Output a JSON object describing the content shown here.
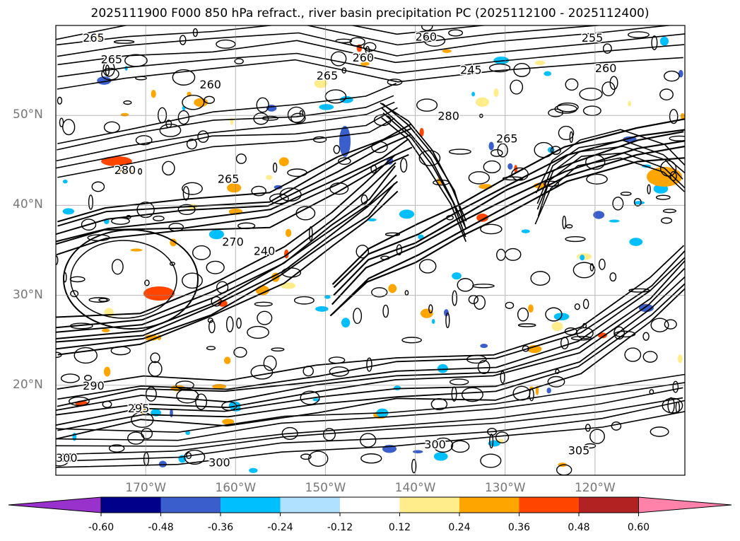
{
  "title": "2025111900 F000 850 hPa refract., river basin precipitation PC (2025112100 - 2025112400)",
  "map": {
    "extent": {
      "lon_min": -180,
      "lon_max": -110,
      "lat_min": 10,
      "lat_max": 60
    },
    "lat_labels": [
      {
        "lat": 50,
        "label": "50°N"
      },
      {
        "lat": 40,
        "label": "40°N"
      },
      {
        "lat": 30,
        "label": "30°N"
      },
      {
        "lat": 20,
        "label": "20°N"
      }
    ],
    "lon_labels": [
      {
        "lon": -170,
        "label": "170°W"
      },
      {
        "lon": -160,
        "label": "160°W"
      },
      {
        "lon": -150,
        "label": "150°W"
      },
      {
        "lon": -140,
        "label": "140°W"
      },
      {
        "lon": -130,
        "label": "130°W"
      },
      {
        "lon": -120,
        "label": "120°W"
      }
    ],
    "contour_labels": [
      {
        "text": "265",
        "lon": -177,
        "lat": 58.2
      },
      {
        "text": "265",
        "lon": -175,
        "lat": 55.8
      },
      {
        "text": "260",
        "lon": -147,
        "lat": 56
      },
      {
        "text": "265",
        "lon": -151,
        "lat": 54
      },
      {
        "text": "260",
        "lon": -164,
        "lat": 53
      },
      {
        "text": "260",
        "lon": -140,
        "lat": 58.3
      },
      {
        "text": "245",
        "lon": -135,
        "lat": 54.6
      },
      {
        "text": "255",
        "lon": -121.5,
        "lat": 58.2
      },
      {
        "text": "260",
        "lon": -120,
        "lat": 54.8
      },
      {
        "text": "280",
        "lon": -137.5,
        "lat": 49.5
      },
      {
        "text": "265",
        "lon": -131,
        "lat": 47
      },
      {
        "text": "265",
        "lon": -162,
        "lat": 42.5
      },
      {
        "text": "280",
        "lon": -173.5,
        "lat": 43.5
      },
      {
        "text": "270",
        "lon": -161.5,
        "lat": 35.5
      },
      {
        "text": "240",
        "lon": -158,
        "lat": 34.5
      },
      {
        "text": "290",
        "lon": -177,
        "lat": 19.5
      },
      {
        "text": "295",
        "lon": -172,
        "lat": 17
      },
      {
        "text": "300",
        "lon": -163,
        "lat": 11
      },
      {
        "text": "300",
        "lon": -139,
        "lat": 13
      },
      {
        "text": "305",
        "lon": -123,
        "lat": 12.3
      },
      {
        "text": "300",
        "lon": -180,
        "lat": 11.5
      }
    ]
  },
  "colorbar": {
    "colors": [
      "#9932cc",
      "#00008b",
      "#3a5fcd",
      "#00bfff",
      "#b0e2ff",
      "#ffffff",
      "#ffec8b",
      "#ffa500",
      "#ff4500",
      "#b22222",
      "#ff82ab"
    ],
    "ticks": [
      "-0.60",
      "-0.48",
      "-0.36",
      "-0.24",
      "-0.12",
      "0.12",
      "0.24",
      "0.36",
      "0.48",
      "0.60"
    ]
  }
}
